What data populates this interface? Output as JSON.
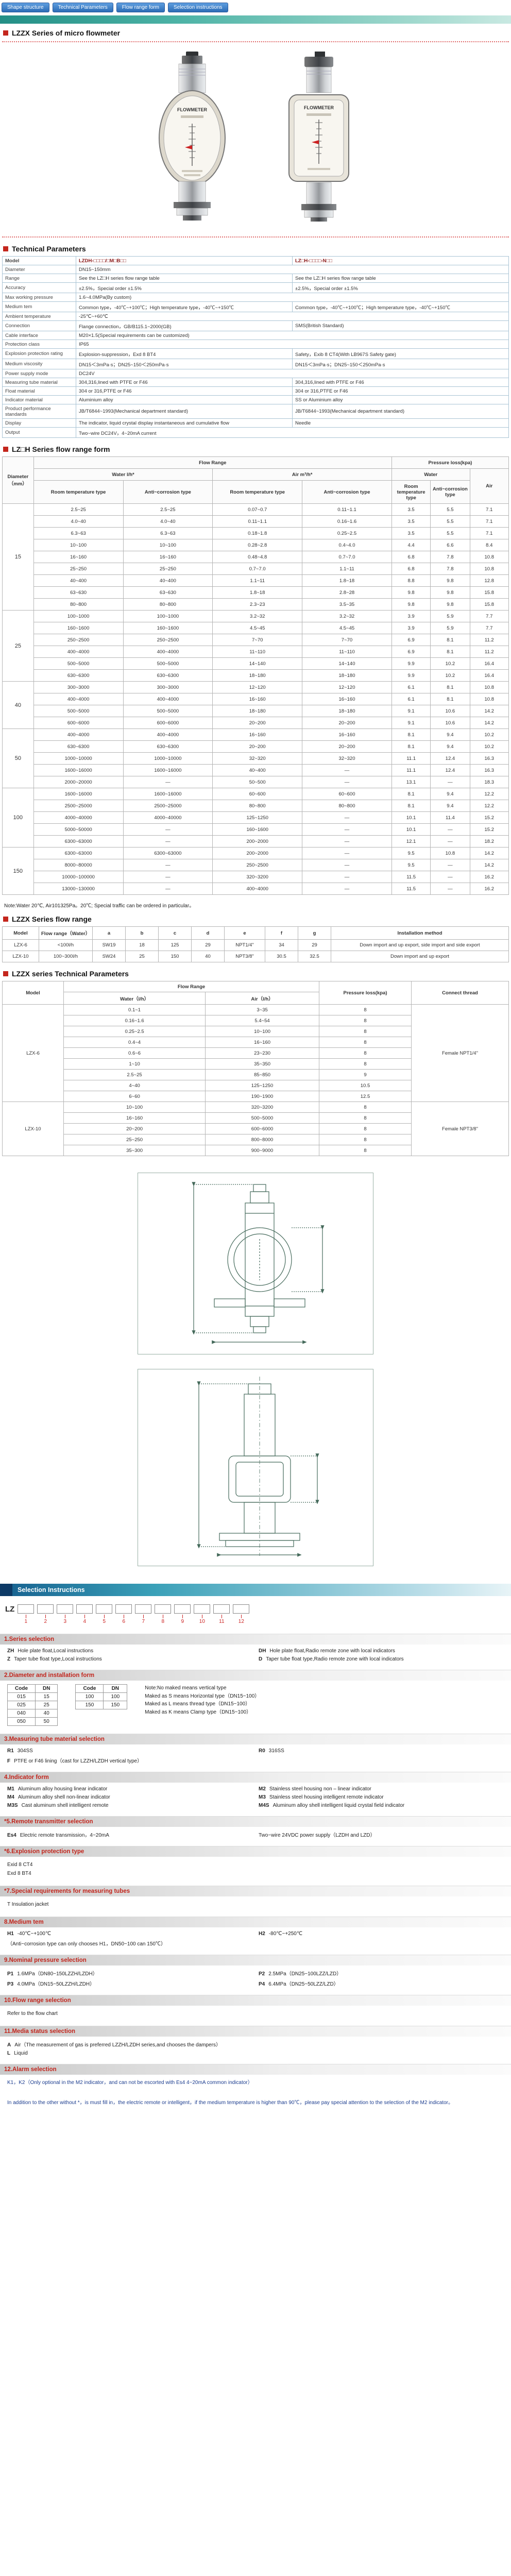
{
  "theme": {
    "accent_red": "#c4261d",
    "tab_blue": "#2c6cb5",
    "teal": "#3aa79e",
    "heading_red": "#c2251c",
    "note_blue": "#1c3d8f",
    "model_maroon": "#8b1a1a"
  },
  "nav": {
    "tabs": [
      "Shape structure",
      "Technical Parameters",
      "Flow range form",
      "Selection instructions"
    ]
  },
  "page": {
    "title": "LZZX Series of micro flowmeter",
    "gauge_label": "FLOWMETER"
  },
  "tech_params": {
    "title": "Technical Parameters",
    "col_headers": [
      "Model",
      "LZDH-□□□□/□M□B□□",
      "LZ□H-□□□□-N□□"
    ],
    "rows": [
      {
        "label": "Diameter",
        "span": true,
        "value": "DN15~150mm"
      },
      {
        "label": "Range",
        "left": "See the LZ□H series flow range table",
        "right": "See the LZ□H series flow range table"
      },
      {
        "label": "Accuracy",
        "left": "±2.5%，Special order ±1.5%",
        "right": "±2.5%，Special order ±1.5%"
      },
      {
        "label": "Max working pressure",
        "span": true,
        "value": "1.6~4.0MPa(By custom)"
      },
      {
        "label": "Medium tem",
        "left": "Common type，-40℃~+100℃；High temperature type，-40℃~+150℃",
        "right": "Common type，-40℃~+100℃；High temperature type，-40℃~+150℃"
      },
      {
        "label": "Ambient temperature",
        "span": true,
        "value": "-25℃~+60℃"
      },
      {
        "label": "Connection",
        "left": "Flange connection，GB/B115.1~2000(GB)",
        "right": "SMS(British Standard)"
      },
      {
        "label": "Cable interface",
        "span": true,
        "value": "M20×1.5(Special requirements can be customized)"
      },
      {
        "label": "Protection class",
        "span": true,
        "value": "IP65"
      },
      {
        "label": "Explosion protection rating",
        "left": "Explosion-suppression，Exd 8 BT4",
        "right": "Safety，Exib 8 CT4(With LB967S Safety gate)"
      },
      {
        "label": "Medium viscosity",
        "left": "DN15＜3mPa·s；DN25~150＜250mPa·s",
        "right": "DN15＜3mPa·s；DN25~150＜250mPa·s"
      },
      {
        "label": "Power supply mode",
        "span": true,
        "value": "DC24V"
      },
      {
        "label": "Measuring tube material",
        "left": "304,316,lined with PTFE or F46",
        "right": "304,316,lined with PTFE or F46"
      },
      {
        "label": "Float material",
        "left": "304 or 316,PTFE or F46",
        "right": "304 or 316,PTFE or F46"
      },
      {
        "label": "Indicator material",
        "left": "Aluminium alloy",
        "right": "SS or Aluminium alloy"
      },
      {
        "label": "Product performance standards",
        "left": "JB/T6844~1993(Mechanical department standard)",
        "right": "JB/T6844~1993(Mechanical department standard)"
      },
      {
        "label": "Display",
        "left": "The indicator, liquid crystal display instantaneous and cumulative flow",
        "right": "Needle"
      },
      {
        "label": "Output",
        "span": true,
        "value": "Two~wire DC24V，4~20mA current"
      }
    ]
  },
  "flow_form": {
    "title": "LZ□H Series flow range form",
    "headers": {
      "diameter": "Diameter（mm）",
      "flow_range": "Flow Range",
      "pressure": "Pressure loss(kpa)",
      "water": "Water l/h*",
      "air": "Air m³/h*",
      "p_water": "Water",
      "p_air": "Air",
      "room": "Room temperature type",
      "anti": "Anti~corrosion type"
    },
    "groups": [
      {
        "diameter": "15",
        "rows": [
          [
            "2.5~25",
            "2.5~25",
            "0.07~0.7",
            "0.11~1.1",
            "3.5",
            "5.5",
            "7.1"
          ],
          [
            "4.0~40",
            "4.0~40",
            "0.11~1.1",
            "0.16~1.6",
            "3.5",
            "5.5",
            "7.1"
          ],
          [
            "6.3~63",
            "6.3~63",
            "0.18~1.8",
            "0.25~2.5",
            "3.5",
            "5.5",
            "7.1"
          ],
          [
            "10~100",
            "10~100",
            "0.28~2.8",
            "0.4~4.0",
            "4.4",
            "6.6",
            "8.4"
          ],
          [
            "16~160",
            "16~160",
            "0.48~4.8",
            "0.7~7.0",
            "6.8",
            "7.8",
            "10.8"
          ],
          [
            "25~250",
            "25~250",
            "0.7~7.0",
            "1.1~11",
            "6.8",
            "7.8",
            "10.8"
          ],
          [
            "40~400",
            "40~400",
            "1.1~11",
            "1.8~18",
            "8.8",
            "9.8",
            "12.8"
          ],
          [
            "63~630",
            "63~630",
            "1.8~18",
            "2.8~28",
            "9.8",
            "9.8",
            "15.8"
          ],
          [
            "80~800",
            "80~800",
            "2.3~23",
            "3.5~35",
            "9.8",
            "9.8",
            "15.8"
          ]
        ]
      },
      {
        "diameter": "25",
        "rows": [
          [
            "100~1000",
            "100~1000",
            "3.2~32",
            "3.2~32",
            "3.9",
            "5.9",
            "7.7"
          ],
          [
            "160~1600",
            "160~1600",
            "4.5~45",
            "4.5~45",
            "3.9",
            "5.9",
            "7.7"
          ],
          [
            "250~2500",
            "250~2500",
            "7~70",
            "7~70",
            "6.9",
            "8.1",
            "11.2"
          ],
          [
            "400~4000",
            "400~4000",
            "11~110",
            "11~110",
            "6.9",
            "8.1",
            "11.2"
          ],
          [
            "500~5000",
            "500~5000",
            "14~140",
            "14~140",
            "9.9",
            "10.2",
            "16.4"
          ],
          [
            "630~6300",
            "630~6300",
            "18~180",
            "18~180",
            "9.9",
            "10.2",
            "16.4"
          ]
        ]
      },
      {
        "diameter": "40",
        "rows": [
          [
            "300~3000",
            "300~3000",
            "12~120",
            "12~120",
            "6.1",
            "8.1",
            "10.8"
          ],
          [
            "400~4000",
            "400~4000",
            "16~160",
            "16~160",
            "6.1",
            "8.1",
            "10.8"
          ],
          [
            "500~5000",
            "500~5000",
            "18~180",
            "18~180",
            "9.1",
            "10.6",
            "14.2"
          ],
          [
            "600~6000",
            "600~6000",
            "20~200",
            "20~200",
            "9.1",
            "10.6",
            "14.2"
          ]
        ]
      },
      {
        "diameter": "50",
        "rows": [
          [
            "400~4000",
            "400~4000",
            "16~160",
            "16~160",
            "8.1",
            "9.4",
            "10.2"
          ],
          [
            "630~6300",
            "630~6300",
            "20~200",
            "20~200",
            "8.1",
            "9.4",
            "10.2"
          ],
          [
            "1000~10000",
            "1000~10000",
            "32~320",
            "32~320",
            "11.1",
            "12.4",
            "16.3"
          ],
          [
            "1600~16000",
            "1600~16000",
            "40~400",
            "—",
            "11.1",
            "12.4",
            "16.3"
          ],
          [
            "2000~20000",
            "—",
            "50~500",
            "—",
            "13.1",
            "—",
            "18.3"
          ]
        ]
      },
      {
        "diameter": "100",
        "rows": [
          [
            "1600~16000",
            "1600~16000",
            "60~600",
            "60~600",
            "8.1",
            "9.4",
            "12.2"
          ],
          [
            "2500~25000",
            "2500~25000",
            "80~800",
            "80~800",
            "8.1",
            "9.4",
            "12.2"
          ],
          [
            "4000~40000",
            "4000~40000",
            "125~1250",
            "—",
            "10.1",
            "11.4",
            "15.2"
          ],
          [
            "5000~50000",
            "—",
            "160~1600",
            "—",
            "10.1",
            "—",
            "15.2"
          ],
          [
            "6300~63000",
            "—",
            "200~2000",
            "—",
            "12.1",
            "—",
            "18.2"
          ]
        ]
      },
      {
        "diameter": "150",
        "rows": [
          [
            "6300~63000",
            "6300~63000",
            "200~2000",
            "—",
            "9.5",
            "10.8",
            "14.2"
          ],
          [
            "8000~80000",
            "—",
            "250~2500",
            "—",
            "9.5",
            "—",
            "14.2"
          ],
          [
            "10000~100000",
            "—",
            "320~3200",
            "—",
            "11.5",
            "—",
            "16.2"
          ],
          [
            "13000~130000",
            "—",
            "400~4000",
            "—",
            "11.5",
            "—",
            "16.2"
          ]
        ]
      }
    ],
    "note": "Note:Water 20℃, Air101325Pa。20℃; Special traffic can be ordered in particular。"
  },
  "lzzx_range": {
    "title": "LZZX Series flow range",
    "headers": [
      "Model",
      "Flow range（Water）",
      "a",
      "b",
      "c",
      "d",
      "e",
      "f",
      "g",
      "Installation method"
    ],
    "rows": [
      [
        "LZX-6",
        "<100l/h",
        "SW19",
        "18",
        "125",
        "29",
        "NPT1/4\"",
        "34",
        "29",
        "Down import and up export, side import and side export"
      ],
      [
        "LZX-10",
        "100~300l/h",
        "SW24",
        "25",
        "150",
        "40",
        "NPT3/8\"",
        "30.5",
        "32.5",
        "Down import and up export"
      ]
    ]
  },
  "lzzx_params": {
    "title": "LZZX series Technical Parameters",
    "headers": {
      "model": "Model",
      "flow": "Flow Range",
      "water": "Water（l/h）",
      "air": "Air（l/h）",
      "pressure": "Pressure loss(kpa)",
      "thread": "Connect thread"
    },
    "groups": [
      {
        "model": "LZX-6",
        "thread": "Female NPT1/4\"",
        "rows": [
          [
            "0.1~1",
            "3~35",
            "8"
          ],
          [
            "0.16~1.6",
            "5.4~54",
            "8"
          ],
          [
            "0.25~2.5",
            "10~100",
            "8"
          ],
          [
            "0.4~4",
            "16~160",
            "8"
          ],
          [
            "0.6~6",
            "23~230",
            "8"
          ],
          [
            "1~10",
            "35~350",
            "8"
          ],
          [
            "2.5~25",
            "85~850",
            "9"
          ],
          [
            "4~40",
            "125~1250",
            "10.5"
          ],
          [
            "6~60",
            "190~1900",
            "12.5"
          ]
        ]
      },
      {
        "model": "LZX-10",
        "thread": "Female NPT3/8\"",
        "rows": [
          [
            "10~100",
            "320~3200",
            "8"
          ],
          [
            "16~160",
            "500~5000",
            "8"
          ],
          [
            "20~200",
            "600~6000",
            "8"
          ],
          [
            "25~250",
            "800~8000",
            "8"
          ],
          [
            "35~300",
            "900~9000",
            "8"
          ]
        ]
      }
    ]
  },
  "selection": {
    "banner": "Selection Instructions",
    "prefix": "LZ",
    "positions": [
      "1",
      "2",
      "3",
      "4",
      "5",
      "6",
      "7",
      "8",
      "9",
      "10",
      "11",
      "12"
    ],
    "sections": [
      {
        "heading": "1.Series selection",
        "type": "two-col",
        "items": [
          {
            "code": "ZH",
            "text": "Hole plate float,Local instructions"
          },
          {
            "code": "DH",
            "text": "Hole plate float,Radio remote zone with local indicators"
          },
          {
            "code": "Z",
            "text": "Taper tube float type,Local instructions"
          },
          {
            "code": "D",
            "text": "Taper tube float type,Radio remote zone with local indicators"
          }
        ]
      },
      {
        "heading": "2.Diameter and installation form",
        "type": "diameter",
        "table1": {
          "headers": [
            "Code",
            "DN"
          ],
          "rows": [
            [
              "015",
              "15"
            ],
            [
              "025",
              "25"
            ],
            [
              "040",
              "40"
            ],
            [
              "050",
              "50"
            ]
          ]
        },
        "table2": {
          "headers": [
            "Code",
            "DN"
          ],
          "rows": [
            [
              "100",
              "100"
            ],
            [
              "150",
              "150"
            ]
          ]
        },
        "notes": [
          "Note:No maked means vertical type",
          "Maked as S means Horizontal type（DN15~100）",
          "Maked as L means thread type（DN15~100）",
          "Maked as K means Clamp type（DN15~100）"
        ]
      },
      {
        "heading": "3.Measuring tube material selection",
        "type": "two-col",
        "items": [
          {
            "code": "R1",
            "text": "304SS"
          },
          {
            "code": "R0",
            "text": "316SS"
          },
          {
            "code": "F",
            "text": "PTFE or F46 lining（cast for LZZH/LZDH vertical type）",
            "full": true
          }
        ]
      },
      {
        "heading": "4.Indicator form",
        "type": "two-col",
        "items": [
          {
            "code": "M1",
            "text": "Aluminum alloy housing linear indicator"
          },
          {
            "code": "M2",
            "text": "Stainless steel housing non – linear indicator"
          },
          {
            "code": "M4",
            "text": "Aluminum alloy shell non-linear indicator"
          },
          {
            "code": "M3",
            "text": "Stainless steel housing intelligent remote indicator"
          },
          {
            "code": "M3S",
            "text": "Cast aluminum shell intelligent remote"
          },
          {
            "code": "M4S",
            "text": "Aluminum alloy shell intelligent liquid crystal field indicator"
          }
        ]
      },
      {
        "heading": "*5.Remote transmitter selection",
        "type": "two-col",
        "items": [
          {
            "code": "Es4",
            "text": "Electric remote transmission，4~20mA"
          },
          {
            "code": "",
            "text": "Two~wire 24VDC power supply（LZDH and LZD）"
          }
        ]
      },
      {
        "heading": "*6.Explosion protection type",
        "type": "lines",
        "lines": [
          "Exid 8 CT4",
          "Exd 8 BT4"
        ]
      },
      {
        "heading": "*7.Special requirements for measuring tubes",
        "type": "lines",
        "lines": [
          "T Insulation jacket"
        ]
      },
      {
        "heading": "8.Medium tem",
        "type": "two-col",
        "items": [
          {
            "code": "H1",
            "text": "-40℃~+100℃"
          },
          {
            "code": "H2",
            "text": "-80℃~+250℃"
          },
          {
            "code": "",
            "text": "（Anti~corrosion type can only chooses H1，DN50~100 can 150℃）",
            "full": true
          }
        ]
      },
      {
        "heading": "9.Nominal pressure selection",
        "type": "two-col",
        "items": [
          {
            "code": "P1",
            "text": "1.6MPa（DN80~150LZZH/LZDH）"
          },
          {
            "code": "P2",
            "text": "2.5MPa（DN25~100LZZ/LZD）"
          },
          {
            "code": "P3",
            "text": "4.0MPa（DN15~50LZZH/LZDH）"
          },
          {
            "code": "P4",
            "text": "6.4MPa（DN25~50LZZ/LZD）"
          }
        ]
      },
      {
        "heading": "10.Flow range selection",
        "type": "lines",
        "lines": [
          "Refer to the flow chart"
        ]
      },
      {
        "heading": "11.Media status selection",
        "type": "two-col",
        "items": [
          {
            "code": "A",
            "text": "Air（The measurement of gas is preferred LZZH/LZDH series,and chooses the dampers）",
            "full": true
          },
          {
            "code": "L",
            "text": "Liquid",
            "full": true
          }
        ]
      },
      {
        "heading": "12.Alarm selection",
        "type": "lines",
        "blue": true,
        "lines": [
          "K1，K2（Only optional in the M2 indicator，and can not be escorted with Es4 4~20mA common indicator）"
        ]
      }
    ],
    "footnote": "In addition to the other without *，is must fill in，the electric remote or intelligent，if the medium temperature is higher than 90℃，please pay special attention to the selection of the M2 indicator。"
  }
}
